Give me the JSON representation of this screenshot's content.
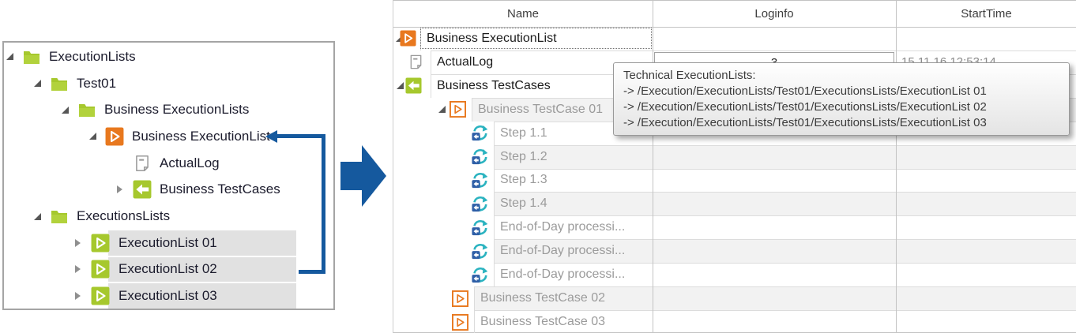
{
  "left_tree": {
    "items": [
      {
        "label": "ExecutionLists",
        "icon": "folder",
        "expander": "expanded",
        "indent": "l0",
        "selected": false
      },
      {
        "label": "Test01",
        "icon": "folder",
        "expander": "expanded",
        "indent": "l1",
        "selected": false
      },
      {
        "label": "Business ExecutionLists",
        "icon": "folder",
        "expander": "expanded",
        "indent": "l2",
        "selected": false
      },
      {
        "label": "Business ExecutionList",
        "icon": "exec-orange",
        "expander": "expanded",
        "indent": "l3",
        "selected": false
      },
      {
        "label": "ActualLog",
        "icon": "log-page",
        "expander": "none",
        "indent": "l4",
        "selected": false
      },
      {
        "label": "Business TestCases",
        "icon": "testcases-green",
        "expander": "collapsed",
        "indent": "l4e",
        "selected": false
      },
      {
        "label": "ExecutionsLists",
        "icon": "folder",
        "expander": "expanded",
        "indent": "l1",
        "selected": false
      },
      {
        "label": "ExecutionList 01",
        "icon": "exec-green",
        "expander": "collapsed",
        "indent": "el",
        "selected": true
      },
      {
        "label": "ExecutionList 02",
        "icon": "exec-green",
        "expander": "collapsed",
        "indent": "el",
        "selected": true
      },
      {
        "label": "ExecutionList 03",
        "icon": "exec-green",
        "expander": "collapsed",
        "indent": "el",
        "selected": true
      }
    ]
  },
  "table": {
    "columns": [
      "Name",
      "Loginfo",
      "StartTime"
    ],
    "rows": [
      {
        "name": "Business ExecutionList",
        "icon": "exec-orange",
        "indent": "t0",
        "expander": "expanded",
        "muted": false,
        "striped": false,
        "focused": true,
        "loginfo": "",
        "starttime": ""
      },
      {
        "name": "ActualLog",
        "icon": "log-page",
        "indent": "t1",
        "expander": "none",
        "muted": false,
        "striped": false,
        "loginfo": "3",
        "loginfo_boxed": true,
        "starttime": "15.11.16 12:53:14"
      },
      {
        "name": "Business TestCases",
        "icon": "testcases-green",
        "indent": "t1e",
        "expander": "expanded",
        "muted": false,
        "striped": false,
        "loginfo": "",
        "starttime": ""
      },
      {
        "name": "Business TestCase 01",
        "icon": "testcase-orange",
        "indent": "t2",
        "expander": "expanded",
        "muted": true,
        "striped": true,
        "loginfo": "",
        "starttime": ""
      },
      {
        "name": "Step 1.1",
        "icon": "step",
        "indent": "t3",
        "expander": "none",
        "muted": true,
        "striped": false,
        "loginfo": "",
        "starttime": ""
      },
      {
        "name": "Step 1.2",
        "icon": "step",
        "indent": "t3",
        "expander": "none",
        "muted": true,
        "striped": true,
        "loginfo": "",
        "starttime": ""
      },
      {
        "name": "Step 1.3",
        "icon": "step",
        "indent": "t3",
        "expander": "none",
        "muted": true,
        "striped": false,
        "loginfo": "",
        "starttime": ""
      },
      {
        "name": "Step 1.4",
        "icon": "step",
        "indent": "t3",
        "expander": "none",
        "muted": true,
        "striped": true,
        "loginfo": "",
        "starttime": ""
      },
      {
        "name": "End-of-Day processi...",
        "icon": "step",
        "indent": "t3",
        "expander": "none",
        "muted": true,
        "striped": false,
        "loginfo": "",
        "starttime": ""
      },
      {
        "name": "End-of-Day processi...",
        "icon": "step",
        "indent": "t3",
        "expander": "none",
        "muted": true,
        "striped": true,
        "loginfo": "",
        "starttime": ""
      },
      {
        "name": "End-of-Day processi...",
        "icon": "step",
        "indent": "t3",
        "expander": "none",
        "muted": true,
        "striped": false,
        "loginfo": "",
        "starttime": ""
      },
      {
        "name": "Business TestCase 02",
        "icon": "testcase-orange",
        "indent": "t2b",
        "expander": "none",
        "muted": true,
        "striped": true,
        "loginfo": "",
        "starttime": ""
      },
      {
        "name": "Business TestCase 03",
        "icon": "testcase-orange",
        "indent": "t2b",
        "expander": "none",
        "muted": true,
        "striped": false,
        "loginfo": "",
        "starttime": ""
      }
    ]
  },
  "tooltip": {
    "title": "Technical ExecutionLists:",
    "lines": [
      "-> /Execution/ExecutionLists/Test01/ExecutionsLists/ExecutionList 01",
      "-> /Execution/ExecutionLists/Test01/ExecutionsLists/ExecutionList 02",
      "-> /Execution/ExecutionLists/Test01/ExecutionsLists/ExecutionList 03"
    ]
  },
  "colors": {
    "accent_blue": "#15599e",
    "green": "#a6c82d",
    "orange": "#e8781e",
    "teal": "#2bb3c0",
    "step_blue": "#2f5fa7",
    "selection_gray": "#e1e1e1",
    "stripe_gray": "#f2f2f2",
    "muted_text": "#9b9b9b",
    "dark_text": "#1c1c1c"
  }
}
